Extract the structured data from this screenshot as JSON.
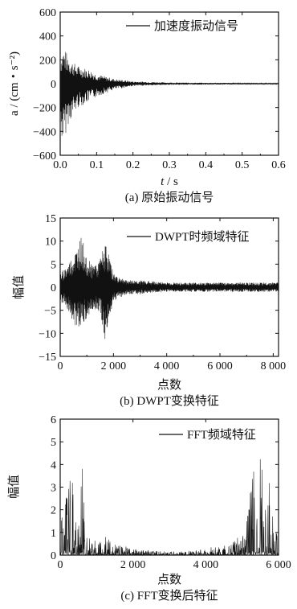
{
  "chart_data": [
    {
      "type": "line",
      "caption": "(a) 原始振动信号",
      "legend": "加速度振动信号",
      "xlabel_italic": "t",
      "xlabel_unit": " / s",
      "ylabel": "a / (cm・s⁻²)",
      "xlim": [
        0.0,
        0.6
      ],
      "ylim": [
        -600,
        600
      ],
      "xticks": [
        0.0,
        0.1,
        0.2,
        0.3,
        0.4,
        0.5,
        0.6
      ],
      "xtick_labels": [
        "0.0",
        "0.1",
        "0.2",
        "0.3",
        "0.4",
        "0.5",
        "0.6"
      ],
      "yticks": [
        -600,
        -400,
        -200,
        0,
        200,
        400,
        600
      ],
      "ytick_labels": [
        "−600",
        "−400",
        "−200",
        "0",
        "200",
        "400",
        "600"
      ],
      "series": [
        {
          "x": [
            0.0,
            0.01,
            0.02,
            0.03,
            0.04,
            0.05,
            0.08,
            0.1,
            0.15,
            0.2,
            0.3,
            0.4,
            0.5,
            0.6
          ],
          "envelope_max": [
            250,
            300,
            250,
            200,
            170,
            150,
            120,
            80,
            40,
            20,
            10,
            8,
            6,
            5
          ],
          "envelope_min": [
            -450,
            -500,
            -350,
            -300,
            -250,
            -200,
            -150,
            -110,
            -50,
            -20,
            -10,
            -8,
            -6,
            -5
          ]
        }
      ],
      "grid": false,
      "legend_position": "top-right"
    },
    {
      "type": "line",
      "caption": "(b) DWPT变换特征",
      "legend": "DWPT时频域特征",
      "xlabel": "点数",
      "ylabel": "幅值",
      "xlim": [
        0,
        8200
      ],
      "ylim": [
        -15,
        15
      ],
      "xticks": [
        0,
        2000,
        4000,
        6000,
        8000
      ],
      "xtick_labels": [
        "0",
        "2 000",
        "4 000",
        "6 000",
        "8 000"
      ],
      "yticks": [
        -15,
        -10,
        -5,
        0,
        5,
        10,
        15
      ],
      "ytick_labels": [
        "−15",
        "−10",
        "−5",
        "0",
        "5",
        "10",
        "15"
      ],
      "series": [
        {
          "x": [
            0,
            300,
            600,
            800,
            1000,
            1200,
            1500,
            1700,
            2000,
            2500,
            3000,
            4000,
            5000,
            6000,
            7000,
            8200
          ],
          "envelope_max": [
            3,
            5,
            8,
            11,
            7,
            5,
            6,
            10,
            3,
            1.5,
            1.5,
            1,
            1,
            1,
            1,
            1
          ],
          "envelope_min": [
            -3,
            -5,
            -9,
            -8,
            -7,
            -5,
            -6,
            -12,
            -3,
            -1.5,
            -1.5,
            -1,
            -1,
            -1,
            -1,
            -1
          ]
        }
      ],
      "grid": false,
      "legend_position": "top-right"
    },
    {
      "type": "line",
      "caption": "(c) FFT变换后特征",
      "legend": "FFT频域特征",
      "xlabel": "点数",
      "ylabel": "幅值",
      "xlim": [
        0,
        6000
      ],
      "ylim": [
        0,
        6
      ],
      "xticks": [
        0,
        2000,
        4000,
        6000
      ],
      "xtick_labels": [
        "0",
        "2 000",
        "4 000",
        "6 000"
      ],
      "yticks": [
        0,
        1,
        2,
        3,
        4,
        5,
        6
      ],
      "ytick_labels": [
        "0",
        "1",
        "2",
        "3",
        "4",
        "5",
        "6"
      ],
      "series": [
        {
          "x": [
            0,
            100,
            200,
            300,
            400,
            500,
            600,
            700,
            900,
            1200,
            1500,
            2000,
            2500,
            3000,
            3500,
            4000,
            4500,
            4800,
            5100,
            5300,
            5400,
            5500,
            5600,
            5700,
            5800,
            5900,
            6000
          ],
          "envelope_max": [
            1.5,
            4.3,
            3.0,
            4.6,
            2.5,
            1.0,
            4.3,
            1.0,
            0.6,
            0.9,
            0.5,
            0.3,
            0.2,
            0.15,
            0.2,
            0.3,
            0.5,
            0.7,
            1.0,
            4.3,
            2.5,
            4.6,
            3.0,
            4.3,
            2.0,
            1.5,
            0.5
          ],
          "envelope_min": [
            0,
            0,
            0,
            0,
            0,
            0,
            0,
            0,
            0,
            0,
            0,
            0,
            0,
            0,
            0,
            0,
            0,
            0,
            0,
            0,
            0,
            0,
            0,
            0,
            0,
            0,
            0
          ]
        }
      ],
      "grid": false,
      "legend_position": "top-right"
    }
  ]
}
